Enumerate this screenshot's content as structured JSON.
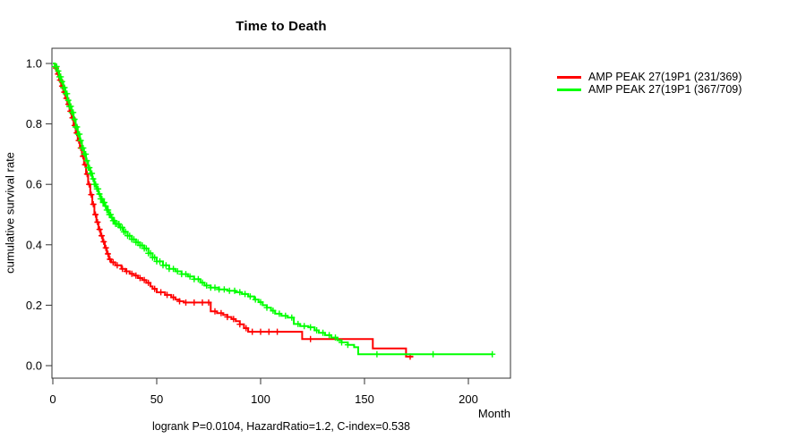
{
  "title": "Time to Death",
  "footer": "logrank P=0.0104, HazardRatio=1.2, C-index=0.538",
  "chart_data": {
    "type": "line",
    "subtype": "kaplan-meier-step-survival",
    "title": "Time to Death",
    "xlabel": "Month",
    "ylabel": "cumulative survival rate",
    "xlim": [
      0,
      220
    ],
    "ylim": [
      0.0,
      1.0
    ],
    "x_ticks": [
      0,
      50,
      100,
      150,
      200
    ],
    "y_ticks": [
      0.0,
      0.2,
      0.4,
      0.6,
      0.8,
      1.0
    ],
    "grid": false,
    "legend_position": "right-outside",
    "annotation": "logrank P=0.0104, HazardRatio=1.2, C-index=0.538",
    "series": [
      {
        "name": "AMP PEAK 27(19P1 (231/369)",
        "color": "#ff0000",
        "steps": [
          [
            0,
            1.0
          ],
          [
            1,
            0.985
          ],
          [
            2,
            0.965
          ],
          [
            3,
            0.945
          ],
          [
            4,
            0.925
          ],
          [
            5,
            0.905
          ],
          [
            6,
            0.885
          ],
          [
            7,
            0.865
          ],
          [
            8,
            0.842
          ],
          [
            9,
            0.82
          ],
          [
            10,
            0.795
          ],
          [
            11,
            0.77
          ],
          [
            12,
            0.745
          ],
          [
            13,
            0.72
          ],
          [
            14,
            0.693
          ],
          [
            15,
            0.665
          ],
          [
            16,
            0.634
          ],
          [
            17,
            0.6
          ],
          [
            18,
            0.566
          ],
          [
            19,
            0.534
          ],
          [
            20,
            0.5
          ],
          [
            21,
            0.475
          ],
          [
            22,
            0.451
          ],
          [
            23,
            0.43
          ],
          [
            24,
            0.41
          ],
          [
            25,
            0.39
          ],
          [
            26,
            0.37
          ],
          [
            27,
            0.352
          ],
          [
            28,
            0.342
          ],
          [
            30,
            0.332
          ],
          [
            33,
            0.32
          ],
          [
            35,
            0.312
          ],
          [
            37,
            0.304
          ],
          [
            39,
            0.298
          ],
          [
            41,
            0.29
          ],
          [
            43,
            0.283
          ],
          [
            45,
            0.274
          ],
          [
            47,
            0.262
          ],
          [
            48,
            0.254
          ],
          [
            50,
            0.243
          ],
          [
            54,
            0.234
          ],
          [
            57,
            0.226
          ],
          [
            59,
            0.219
          ],
          [
            61,
            0.213
          ],
          [
            63,
            0.209
          ],
          [
            76,
            0.18
          ],
          [
            79,
            0.174
          ],
          [
            82,
            0.168
          ],
          [
            84,
            0.161
          ],
          [
            86,
            0.154
          ],
          [
            88,
            0.147
          ],
          [
            90,
            0.137
          ],
          [
            92,
            0.124
          ],
          [
            94,
            0.112
          ],
          [
            120,
            0.088
          ],
          [
            154,
            0.057
          ],
          [
            170,
            0.03
          ],
          [
            173.5,
            0.03
          ]
        ],
        "censor_months": [
          1.5,
          2.5,
          3.5,
          4.5,
          5.5,
          6.5,
          7.5,
          8.5,
          9.5,
          10.5,
          11.5,
          12.5,
          13.5,
          14.5,
          15.5,
          16.5,
          17.5,
          18.5,
          19.5,
          20.5,
          21.5,
          22.5,
          23.5,
          24.5,
          25.5,
          26.5,
          27.5,
          29,
          31,
          33.5,
          35.5,
          38,
          40,
          42,
          44,
          46,
          49,
          52,
          55,
          58,
          61,
          64,
          68,
          72,
          75,
          78,
          81,
          84,
          87,
          90,
          93,
          96,
          100,
          104,
          108,
          124,
          172
        ]
      },
      {
        "name": "AMP PEAK 27(19P1 (367/709)",
        "color": "#00ff00",
        "steps": [
          [
            0,
            1.0
          ],
          [
            1,
            0.99
          ],
          [
            2,
            0.975
          ],
          [
            3,
            0.956
          ],
          [
            4,
            0.94
          ],
          [
            5,
            0.92
          ],
          [
            6,
            0.9
          ],
          [
            7,
            0.878
          ],
          [
            8,
            0.858
          ],
          [
            9,
            0.838
          ],
          [
            10,
            0.815
          ],
          [
            11,
            0.79
          ],
          [
            12,
            0.766
          ],
          [
            13,
            0.745
          ],
          [
            14,
            0.72
          ],
          [
            15,
            0.7
          ],
          [
            16,
            0.678
          ],
          [
            17,
            0.655
          ],
          [
            18,
            0.636
          ],
          [
            19,
            0.618
          ],
          [
            20,
            0.6
          ],
          [
            21,
            0.585
          ],
          [
            22,
            0.568
          ],
          [
            23,
            0.552
          ],
          [
            24,
            0.54
          ],
          [
            25,
            0.528
          ],
          [
            26,
            0.515
          ],
          [
            27,
            0.5
          ],
          [
            28,
            0.49
          ],
          [
            29,
            0.48
          ],
          [
            30,
            0.469
          ],
          [
            32,
            0.457
          ],
          [
            34,
            0.443
          ],
          [
            36,
            0.43
          ],
          [
            38,
            0.418
          ],
          [
            40,
            0.408
          ],
          [
            42,
            0.398
          ],
          [
            44,
            0.388
          ],
          [
            46,
            0.372
          ],
          [
            48,
            0.358
          ],
          [
            50,
            0.345
          ],
          [
            53,
            0.332
          ],
          [
            56,
            0.32
          ],
          [
            59,
            0.312
          ],
          [
            62,
            0.303
          ],
          [
            65,
            0.295
          ],
          [
            68,
            0.286
          ],
          [
            71,
            0.275
          ],
          [
            73,
            0.265
          ],
          [
            76,
            0.258
          ],
          [
            80,
            0.252
          ],
          [
            84,
            0.248
          ],
          [
            88,
            0.243
          ],
          [
            91,
            0.237
          ],
          [
            94,
            0.229
          ],
          [
            97,
            0.219
          ],
          [
            99,
            0.21
          ],
          [
            101,
            0.2
          ],
          [
            103,
            0.192
          ],
          [
            105,
            0.182
          ],
          [
            107,
            0.172
          ],
          [
            110,
            0.165
          ],
          [
            113,
            0.159
          ],
          [
            116,
            0.138
          ],
          [
            119,
            0.131
          ],
          [
            123,
            0.127
          ],
          [
            126,
            0.117
          ],
          [
            128,
            0.109
          ],
          [
            131,
            0.101
          ],
          [
            134,
            0.093
          ],
          [
            137,
            0.084
          ],
          [
            139,
            0.077
          ],
          [
            142,
            0.069
          ],
          [
            145,
            0.061
          ],
          [
            147,
            0.038
          ],
          [
            211.5,
            0.038
          ]
        ],
        "censor_months": [
          1,
          1.8,
          2.6,
          3.2,
          3.8,
          4.4,
          5,
          5.6,
          6.2,
          6.8,
          7.4,
          8,
          8.6,
          9.2,
          9.8,
          10.4,
          11,
          11.6,
          12.2,
          12.8,
          13.4,
          14,
          14.6,
          15.2,
          15.8,
          16.4,
          17,
          17.6,
          18.2,
          18.8,
          19.4,
          20,
          20.6,
          21.2,
          21.8,
          22.4,
          23,
          23.6,
          24.2,
          24.8,
          25.4,
          26,
          26.6,
          27.2,
          27.8,
          28.4,
          29,
          29.6,
          30.2,
          31,
          31.8,
          32.6,
          33.4,
          34.2,
          35,
          36,
          37,
          38,
          39,
          40,
          41,
          42,
          43,
          44,
          45,
          46,
          47,
          48,
          49,
          50,
          51.5,
          53,
          54.5,
          56,
          58,
          60,
          62,
          64,
          66,
          68,
          70,
          72,
          74,
          76,
          78,
          80,
          82.5,
          85,
          87.5,
          90,
          92.5,
          95,
          97.5,
          100,
          103,
          106,
          109,
          112,
          115,
          118,
          121,
          124,
          127,
          130,
          133,
          136,
          139,
          142,
          156,
          183,
          211.5
        ]
      }
    ]
  }
}
